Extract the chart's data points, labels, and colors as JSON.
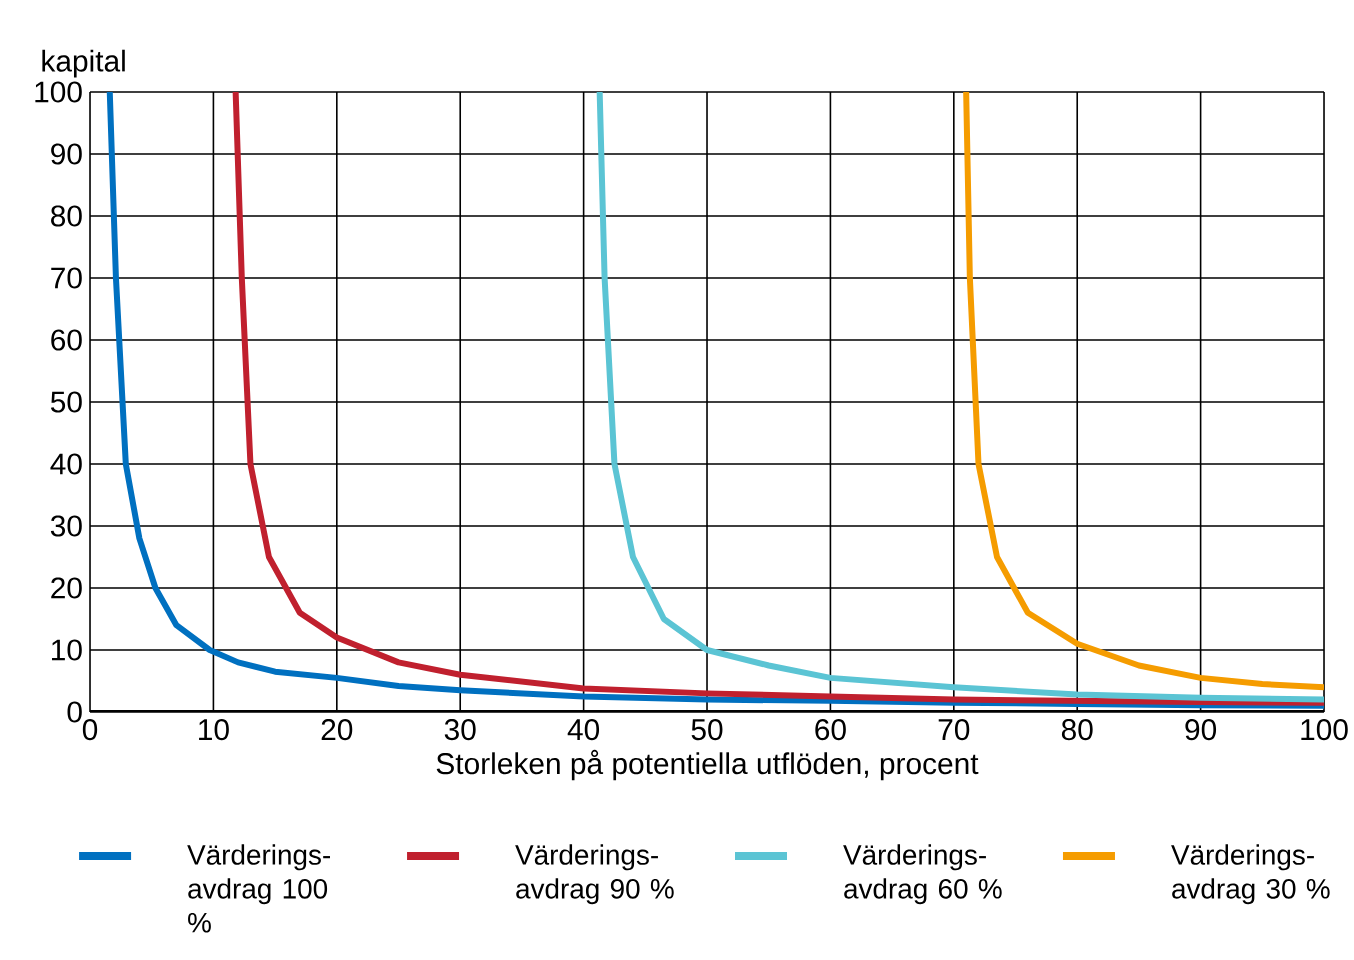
{
  "chart_data": {
    "type": "line",
    "ylabel": "kapital",
    "xlabel": "Storleken på potentiella utflöden, procent",
    "xlim": [
      0,
      100
    ],
    "ylim": [
      0,
      100
    ],
    "xticks": [
      0,
      10,
      20,
      30,
      40,
      50,
      60,
      70,
      80,
      90,
      100
    ],
    "yticks": [
      0,
      10,
      20,
      30,
      40,
      50,
      60,
      70,
      80,
      90,
      100
    ],
    "grid": true,
    "legend": "bottom",
    "marker": "none",
    "line_style": "solid",
    "series": [
      {
        "name": "Värderings-avdrag 100 %",
        "color": "#0070c0",
        "x": [
          1.6,
          2.1,
          2.9,
          4,
          5.3,
          7,
          9.7,
          12,
          15,
          20,
          25,
          30,
          40,
          50,
          60,
          70,
          80,
          90,
          100
        ],
        "values": [
          100,
          70,
          40,
          28,
          20,
          14,
          10,
          8,
          6.5,
          5.5,
          4.2,
          3.5,
          2.5,
          2,
          1.8,
          1.5,
          1.3,
          1.1,
          1
        ]
      },
      {
        "name": "Värderings-avdrag 90 %",
        "color": "#c0202e",
        "x": [
          11.8,
          12.3,
          13,
          14.5,
          17,
          20,
          25,
          30,
          40,
          50,
          60,
          70,
          80,
          90,
          100
        ],
        "values": [
          100,
          70,
          40,
          25,
          16,
          12,
          8,
          6,
          3.8,
          3,
          2.5,
          2,
          1.8,
          1.6,
          1.5
        ]
      },
      {
        "name": "Värderings-avdrag 60 %",
        "color": "#5bc4d4",
        "x": [
          41.3,
          41.7,
          42.5,
          44,
          46.5,
          50,
          55,
          60,
          70,
          80,
          90,
          100
        ],
        "values": [
          100,
          70,
          40,
          25,
          15,
          10,
          7.5,
          5.5,
          4,
          2.8,
          2.3,
          2
        ]
      },
      {
        "name": "Värderings-avdrag 30 %",
        "color": "#f59c00",
        "x": [
          71,
          71.3,
          72,
          73.5,
          76,
          80,
          85,
          90,
          95,
          100
        ],
        "values": [
          100,
          70,
          40,
          25,
          16,
          11,
          7.5,
          5.5,
          4.5,
          4
        ]
      }
    ]
  }
}
